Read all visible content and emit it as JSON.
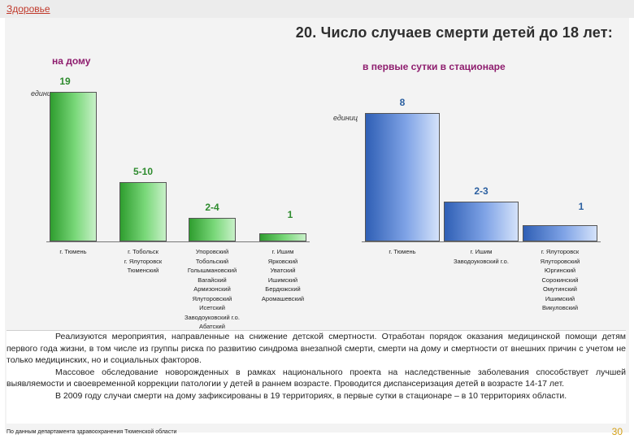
{
  "breadcrumb": "Здоровье",
  "title": "20. Число случаев смерти детей до 18 лет:",
  "chart_data": [
    {
      "type": "bar",
      "title": "на дому",
      "unit_label": "единиц",
      "color": "#3cb83c",
      "categories": [
        [
          "г. Тюмень"
        ],
        [
          "г. Тобольск",
          "г. Ялуторовск",
          "Тюменский"
        ],
        [
          "Упоровский",
          "Тобольский",
          "Голышмановский",
          "Вагайский",
          "Армизонский",
          "Ялуторовский",
          "Исетский",
          "Заводоуковский г.о.",
          "Абатский"
        ],
        [
          "г. Ишим",
          "Ярковский",
          "Уватский",
          "Ишимский",
          "Бердюжский",
          "Аромашевский"
        ]
      ],
      "value_labels": [
        "19",
        "5-10",
        "2-4",
        "1"
      ],
      "values": [
        19,
        7.5,
        3,
        1
      ]
    },
    {
      "type": "bar",
      "title": "в первые сутки в стационаре",
      "unit_label": "единиц",
      "color": "#4a7fd8",
      "categories": [
        [
          "г. Тюмень"
        ],
        [
          "г. Ишим",
          "Заводоуковский г.о."
        ],
        [
          "г. Ялуторовск",
          "Ялуторовский",
          "Юргинский",
          "Сорокинский",
          "Омутинский",
          "Ишимский",
          "Викуловский"
        ]
      ],
      "value_labels": [
        "8",
        "2-3",
        "1"
      ],
      "values": [
        8,
        2.5,
        1
      ]
    }
  ],
  "text": {
    "p1": "Реализуются мероприятия, направленные на снижение детской смертности. Отработан порядок оказания медицинской помощи детям первого года жизни, в том числе из группы риска по развитию синдрома внезапной смерти, смерти на дому и смертности от внешних причин с учетом не только медицинских, но и социальных факторов.",
    "p2": "Массовое обследование новорожденных в рамках национального проекта на наследственные заболевания способствует лучшей выявляемости и своевременной коррекции патологии у детей в раннем возрасте. Проводится диспансеризация детей в возрасте 14-17 лет.",
    "p3": "В 2009 году случаи смерти на дому зафиксированы в 19 территориях, в первые сутки в стационаре – в 10 территориях области."
  },
  "source": "По данным департамента здравоохранения Тюменской области",
  "page_number": "30"
}
